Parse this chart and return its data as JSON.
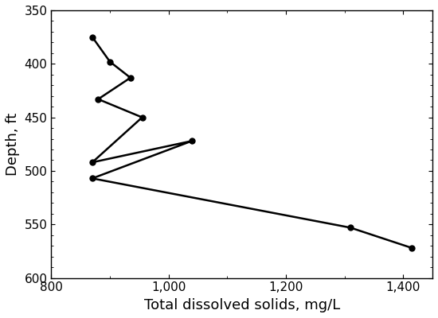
{
  "tds": [
    870,
    900,
    935,
    880,
    955,
    870,
    1040,
    870,
    1310,
    1415
  ],
  "depth": [
    375,
    398,
    413,
    433,
    450,
    492,
    472,
    507,
    553,
    572
  ],
  "xlim": [
    800,
    1450
  ],
  "ylim": [
    600,
    350
  ],
  "xticks": [
    800,
    1000,
    1200,
    1400
  ],
  "yticks": [
    350,
    400,
    450,
    500,
    550,
    600
  ],
  "xlabel": "Total dissolved solids, mg/L",
  "ylabel": "Depth, ft",
  "line_color": "#000000",
  "marker": "o",
  "marker_size": 5,
  "linewidth": 1.8,
  "tick_labelsize": 11,
  "label_fontsize": 13
}
